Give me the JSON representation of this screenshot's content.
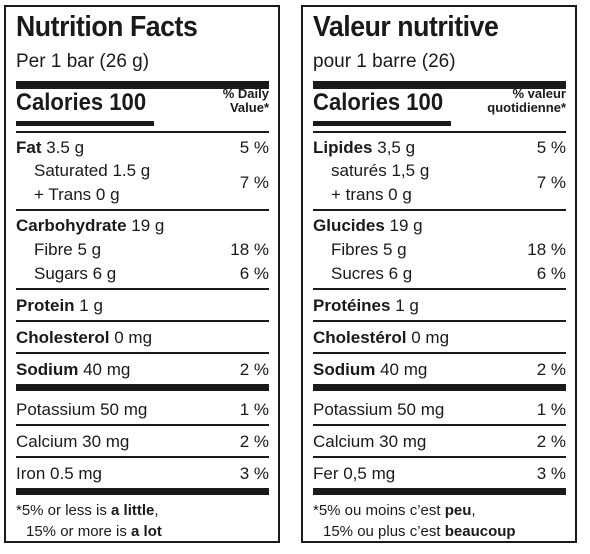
{
  "en": {
    "title": "Nutrition Facts",
    "serving": "Per 1 bar (26 g)",
    "calories": "Calories 100",
    "dv_line1": "% Daily",
    "dv_line2": "Value",
    "dv_star": "*",
    "fat_label": "Fat",
    "fat_amount": " 3.5 g",
    "fat_pct": "5 %",
    "sat_label": "Saturated 1.5 g",
    "trans_label": "+ Trans 0 g",
    "sat_trans_pct": "7 %",
    "carb_label": "Carbohydrate",
    "carb_amount": " 19 g",
    "fibre_label": "Fibre 5 g",
    "fibre_pct": "18 %",
    "sugars_label": "Sugars 6 g",
    "sugars_pct": "6 %",
    "protein_label": "Protein",
    "protein_amount": " 1 g",
    "chol_label": "Cholesterol",
    "chol_amount": " 0 mg",
    "sodium_label": "Sodium",
    "sodium_amount": " 40 mg",
    "sodium_pct": "2 %",
    "potassium": "Potassium 50 mg",
    "potassium_pct": "1 %",
    "calcium": "Calcium 30 mg",
    "calcium_pct": "2 %",
    "iron": "Iron 0.5 mg",
    "iron_pct": "3 %",
    "foot1_a": "*5% or less is ",
    "foot1_b": "a little",
    "foot1_c": ",",
    "foot2_a": "15% or more is ",
    "foot2_b": "a lot"
  },
  "fr": {
    "title": "Valeur nutritive",
    "serving": "pour 1 barre (26)",
    "calories": "Calories 100",
    "dv_line1": "% valeur",
    "dv_line2": "quotidienne",
    "dv_star": "*",
    "fat_label": "Lipides",
    "fat_amount": " 3,5 g",
    "fat_pct": "5 %",
    "sat_label": "saturés 1,5 g",
    "trans_label": "+ trans 0 g",
    "sat_trans_pct": "7 %",
    "carb_label": "Glucides",
    "carb_amount": " 19 g",
    "fibre_label": "Fibres 5 g",
    "fibre_pct": "18 %",
    "sugars_label": "Sucres 6 g",
    "sugars_pct": "6 %",
    "protein_label": "Protéines",
    "protein_amount": " 1 g",
    "chol_label": "Cholestérol",
    "chol_amount": " 0 mg",
    "sodium_label": "Sodium",
    "sodium_amount": " 40 mg",
    "sodium_pct": "2 %",
    "potassium": "Potassium 50 mg",
    "potassium_pct": "1 %",
    "calcium": "Calcium 30 mg",
    "calcium_pct": "2 %",
    "iron": "Fer 0,5 mg",
    "iron_pct": "3 %",
    "foot1_a": "*5% ou moins c’est ",
    "foot1_b": "peu",
    "foot1_c": ",",
    "foot2_a": "15% ou plus c’est ",
    "foot2_b": "beaucoup"
  }
}
